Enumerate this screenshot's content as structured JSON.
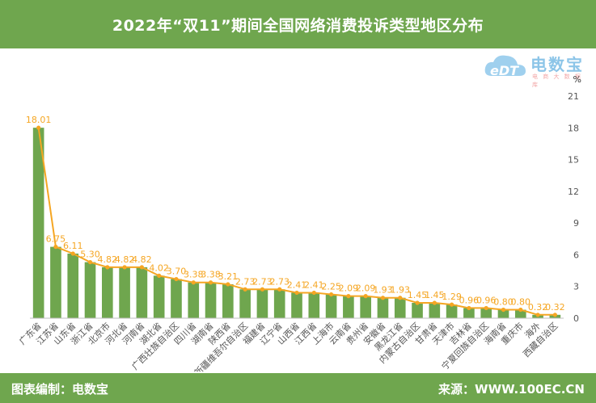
{
  "header": {
    "title": "2022年“双11”期间全国网络消费投诉类型地区分布"
  },
  "footer": {
    "left": "图表编制：电数宝",
    "right": "来源：WWW.100EC.CN"
  },
  "logo": {
    "cn": "电数宝",
    "en": "eDT",
    "sub": "电 商 大 数 据 库"
  },
  "colors": {
    "band": "#6fa64e",
    "bar": "#6fa64e",
    "line": "#f5a623",
    "label": "#f5a623",
    "axis_text": "#555555"
  },
  "chart_data": {
    "type": "bar",
    "unit": "%",
    "categories": [
      "广东省",
      "江苏省",
      "山东省",
      "浙江省",
      "北京市",
      "河北省",
      "河南省",
      "湖北省",
      "广西壮族自治区",
      "四川省",
      "湖南省",
      "陕西省",
      "新疆维吾尔自治区",
      "福建省",
      "辽宁省",
      "山西省",
      "江西省",
      "上海市",
      "云南省",
      "贵州省",
      "安徽省",
      "黑龙江省",
      "内蒙古自治区",
      "甘肃省",
      "天津市",
      "吉林省",
      "宁夏回族自治区",
      "海南省",
      "重庆市",
      "海外",
      "西藏自治区"
    ],
    "values": [
      18.01,
      6.75,
      6.11,
      5.3,
      4.82,
      4.82,
      4.82,
      4.02,
      3.7,
      3.38,
      3.38,
      3.21,
      2.73,
      2.73,
      2.73,
      2.41,
      2.41,
      2.25,
      2.09,
      2.09,
      1.93,
      1.93,
      1.45,
      1.45,
      1.29,
      0.96,
      0.96,
      0.8,
      0.8,
      0.32,
      0.32
    ],
    "data_labels": [
      "18.01",
      "6.75",
      "6.11",
      "5.30",
      "4.82",
      "4.82",
      "4.82",
      "4.02",
      "3.70",
      "3.38",
      "3.38",
      "3.21",
      "2.73",
      "2.73",
      "2.73",
      "2.41",
      "2.41",
      "2.25",
      "2.09",
      "2.09",
      "1.93",
      "1.93",
      "1.45",
      "1.45",
      "1.29",
      "0.96",
      "0.96",
      "0.80",
      "0.80",
      "0.32",
      "0.32"
    ],
    "y_axis_position": "right",
    "ylim": [
      0,
      21
    ],
    "yticks": [
      0,
      3,
      6,
      9,
      12,
      15,
      18,
      21
    ],
    "line_overlay": true,
    "grid": false
  }
}
